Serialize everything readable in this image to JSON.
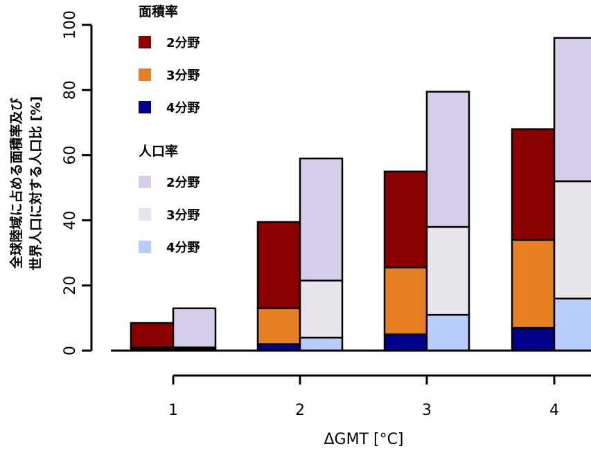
{
  "chart_data": {
    "type": "bar",
    "stacked": true,
    "xlabel": "ΔGMT [°C]",
    "ylabel_lines": [
      "全球陸域に占める面積率及び",
      "世界人口に対する人口比 [%]"
    ],
    "categories": [
      "1",
      "2",
      "3",
      "4"
    ],
    "ylim": [
      0,
      100
    ],
    "yticks": [
      0,
      20,
      40,
      60,
      80,
      100
    ],
    "grid": false,
    "legend_position": "top-left",
    "groups": [
      {
        "title": "面積率",
        "series": [
          {
            "name": "4分野",
            "color": "#00008b",
            "values": [
              0.5,
              2,
              5,
              7
            ]
          },
          {
            "name": "3分野",
            "color": "#e67e22",
            "values": [
              0.5,
              11,
              20.5,
              27
            ]
          },
          {
            "name": "2分野",
            "color": "#8b0000",
            "values": [
              7.5,
              26.5,
              29.5,
              34
            ]
          }
        ]
      },
      {
        "title": "人口率",
        "series": [
          {
            "name": "4分野",
            "color": "#b8cdfa",
            "values": [
              0.5,
              4,
              11,
              16
            ]
          },
          {
            "name": "3分野",
            "color": "#e8e4ec",
            "values": [
              0.5,
              17.5,
              27,
              36
            ]
          },
          {
            "name": "2分野",
            "color": "#d5cdea",
            "values": [
              12,
              37.5,
              41.5,
              44
            ]
          }
        ]
      }
    ],
    "legend": [
      {
        "title": "面積率",
        "items": [
          {
            "name": "2分野",
            "color": "#8b0000"
          },
          {
            "name": "3分野",
            "color": "#e67e22"
          },
          {
            "name": "4分野",
            "color": "#00008b"
          }
        ]
      },
      {
        "title": "人口率",
        "items": [
          {
            "name": "2分野",
            "color": "#d5cdea"
          },
          {
            "name": "3分野",
            "color": "#e8e4ec"
          },
          {
            "name": "4分野",
            "color": "#b8cdfa"
          }
        ]
      }
    ]
  }
}
